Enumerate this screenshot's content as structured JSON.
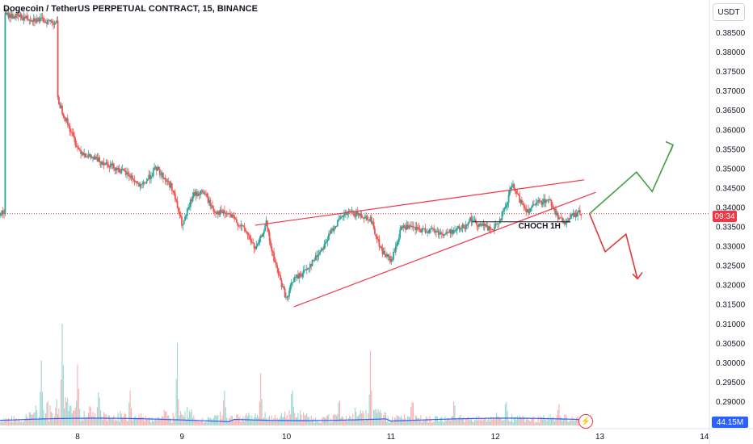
{
  "header": {
    "symbol_title": "Dogecoin / TetherUS PERPETUAL CONTRACT, 15, BINANCE",
    "currency_button": "USDT"
  },
  "price_axis": {
    "ticks": [
      "0.38500",
      "0.38000",
      "0.37500",
      "0.37000",
      "0.36500",
      "0.36000",
      "0.35500",
      "0.35000",
      "0.34500",
      "0.34000",
      "0.33500",
      "0.33000",
      "0.32500",
      "0.32000",
      "0.31500",
      "0.31000",
      "0.30500",
      "0.30000",
      "0.29500",
      "0.29000"
    ],
    "current_tag": "09:34",
    "volume_tag": "44.15M"
  },
  "time_axis": {
    "ticks": [
      "8",
      "9",
      "10",
      "11",
      "12",
      "13",
      "14"
    ]
  },
  "annotations": {
    "choch_label": "CHOCH 1H"
  },
  "colors": {
    "up": "#26a69a",
    "down": "#ef5350",
    "wedge": "#f23645",
    "bull_path": "#43a047",
    "bear_path": "#e53935",
    "volume_ma": "#2962ff"
  },
  "icons": {
    "alert": "lightning-icon"
  },
  "chart_data": {
    "type": "line",
    "title": "Dogecoin / TetherUS PERPETUAL CONTRACT, 15, BINANCE",
    "xlabel": "",
    "ylabel": "",
    "ylim": [
      0.287,
      0.391
    ],
    "x_ticks": [
      8,
      9,
      10,
      11,
      12,
      13,
      14
    ],
    "series": [
      {
        "x": [
          7.3,
          7.55,
          7.8,
          7.8,
          7.8,
          8.0,
          8.1,
          8.3,
          8.5,
          8.6,
          8.75,
          8.9,
          9.0,
          9.1,
          9.2,
          9.3,
          9.45,
          9.6,
          9.7,
          9.75,
          9.8,
          9.85,
          9.95,
          10.0,
          10.05,
          10.15,
          10.25,
          10.35,
          10.45,
          10.55,
          10.6,
          10.7,
          10.8,
          10.9,
          11.0,
          11.1,
          11.2,
          11.3,
          11.4,
          11.5,
          11.6,
          11.7,
          11.75,
          11.8,
          11.9,
          11.95,
          12.0,
          12.1,
          12.15,
          12.2,
          12.3,
          12.4,
          12.5,
          12.55,
          12.6,
          12.65,
          12.7,
          12.75,
          12.8
        ],
        "values": [
          0.3895,
          0.3885,
          0.3875,
          0.382,
          0.368,
          0.355,
          0.353,
          0.351,
          0.348,
          0.345,
          0.35,
          0.345,
          0.335,
          0.343,
          0.344,
          0.339,
          0.338,
          0.334,
          0.329,
          0.332,
          0.336,
          0.329,
          0.32,
          0.316,
          0.321,
          0.323,
          0.326,
          0.33,
          0.335,
          0.338,
          0.3385,
          0.338,
          0.337,
          0.329,
          0.326,
          0.335,
          0.3345,
          0.334,
          0.334,
          0.333,
          0.334,
          0.335,
          0.337,
          0.336,
          0.335,
          0.334,
          0.335,
          0.34,
          0.346,
          0.343,
          0.339,
          0.341,
          0.342,
          0.34,
          0.337,
          0.336,
          0.337,
          0.338,
          0.3385
        ]
      }
    ],
    "volume": [
      {
        "x": 7.65,
        "v": 1.0
      },
      {
        "x": 7.85,
        "v": 1.4
      },
      {
        "x": 8.0,
        "v": 0.7
      },
      {
        "x": 8.2,
        "v": 0.5
      },
      {
        "x": 8.5,
        "v": 0.5
      },
      {
        "x": 8.95,
        "v": 0.9
      },
      {
        "x": 9.4,
        "v": 0.4
      },
      {
        "x": 9.75,
        "v": 0.5
      },
      {
        "x": 10.05,
        "v": 0.6
      },
      {
        "x": 10.5,
        "v": 0.3
      },
      {
        "x": 10.8,
        "v": 1.1
      },
      {
        "x": 11.2,
        "v": 0.3
      },
      {
        "x": 11.6,
        "v": 0.25
      },
      {
        "x": 12.1,
        "v": 0.3
      },
      {
        "x": 12.6,
        "v": 0.2
      }
    ],
    "volume_ma_level": "44.15M",
    "current_price": 0.3383,
    "wedge": {
      "upper": [
        [
          9.7,
          0.3353
        ],
        [
          12.85,
          0.347
        ]
      ],
      "lower": [
        [
          10.07,
          0.3143
        ],
        [
          12.96,
          0.3438
        ]
      ],
      "inner": [
        [
          11.78,
          0.3362
        ],
        [
          12.72,
          0.3362
        ]
      ]
    },
    "projection_bull": [
      [
        12.9,
        0.3383
      ],
      [
        13.35,
        0.349
      ],
      [
        13.5,
        0.344
      ],
      [
        13.7,
        0.356
      ]
    ],
    "projection_bear": [
      [
        12.9,
        0.3383
      ],
      [
        13.05,
        0.3285
      ],
      [
        13.25,
        0.333
      ],
      [
        13.36,
        0.3215
      ]
    ]
  }
}
